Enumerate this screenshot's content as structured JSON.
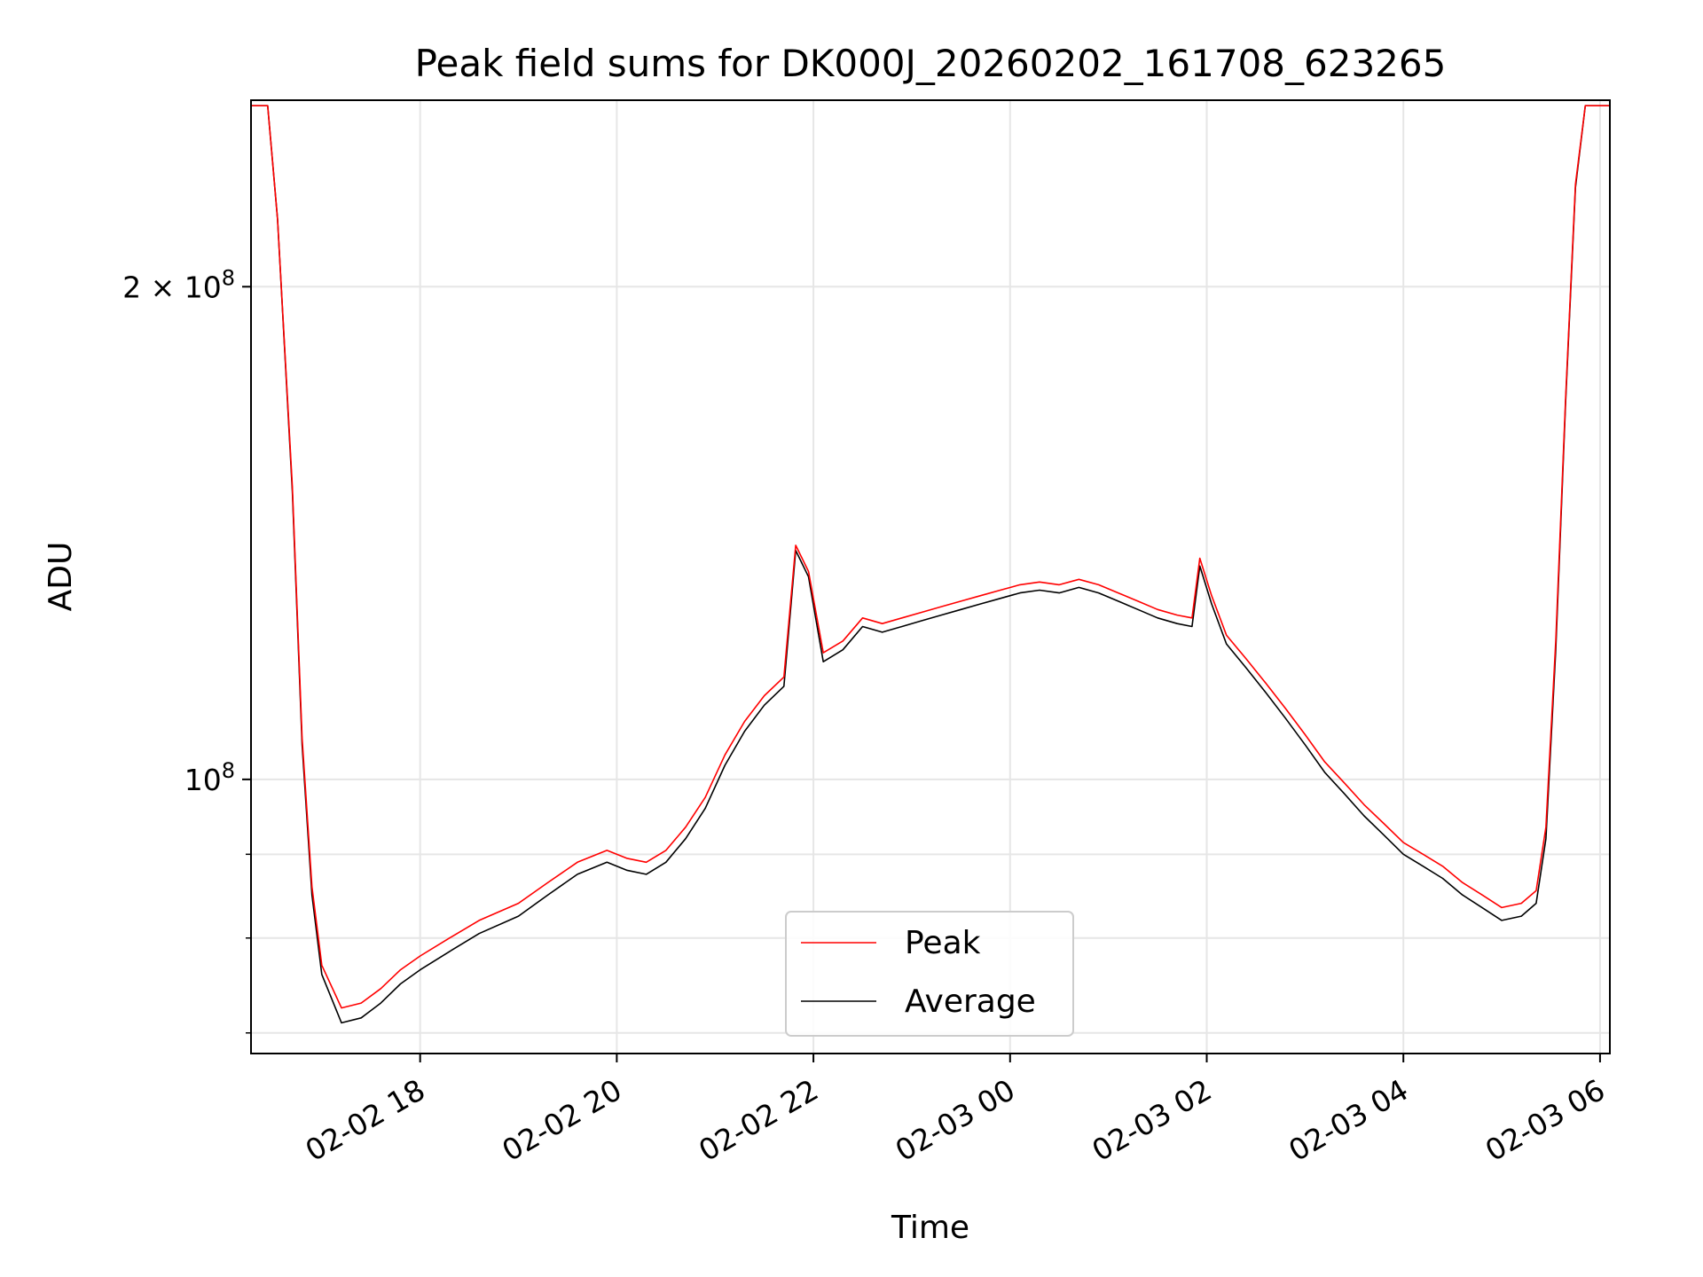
{
  "chart_data": {
    "type": "line",
    "title": "Peak field sums for DK000J_20260202_161708_623265",
    "xlabel": "Time",
    "ylabel": "ADU",
    "yscale": "log",
    "x_unit": "hours since 2026-02-02 00:00 (x values)",
    "xlim": [
      16.28,
      30.1
    ],
    "ylim": [
      68000000,
      260000000
    ],
    "x_ticks": [
      {
        "value": 18,
        "label": "02-02 18"
      },
      {
        "value": 20,
        "label": "02-02 20"
      },
      {
        "value": 22,
        "label": "02-02 22"
      },
      {
        "value": 24,
        "label": "02-03 00"
      },
      {
        "value": 26,
        "label": "02-03 02"
      },
      {
        "value": 28,
        "label": "02-03 04"
      },
      {
        "value": 30,
        "label": "02-03 06"
      }
    ],
    "y_ticks_major": [
      {
        "value": 100000000,
        "base": "10",
        "exp": "8",
        "coef": ""
      },
      {
        "value": 200000000,
        "base": "10",
        "exp": "8",
        "coef": "2 × "
      }
    ],
    "y_ticks_minor": [
      70000000,
      80000000,
      90000000,
      300000000
    ],
    "grid": true,
    "legend": {
      "position": "lower-center",
      "entries": [
        "Peak",
        "Average"
      ]
    },
    "series": [
      {
        "name": "Average",
        "color": "#000000",
        "points": [
          [
            16.28,
            258000000
          ],
          [
            16.45,
            258000000
          ],
          [
            16.55,
            220000000
          ],
          [
            16.7,
            150000000
          ],
          [
            16.8,
            105000000
          ],
          [
            16.9,
            85000000
          ],
          [
            17.0,
            76000000
          ],
          [
            17.2,
            71000000
          ],
          [
            17.4,
            71500000
          ],
          [
            17.6,
            73000000
          ],
          [
            17.8,
            75000000
          ],
          [
            18.0,
            76500000
          ],
          [
            18.3,
            78500000
          ],
          [
            18.6,
            80500000
          ],
          [
            19.0,
            82500000
          ],
          [
            19.3,
            85000000
          ],
          [
            19.6,
            87500000
          ],
          [
            19.9,
            89000000
          ],
          [
            20.1,
            88000000
          ],
          [
            20.3,
            87500000
          ],
          [
            20.5,
            89000000
          ],
          [
            20.7,
            92000000
          ],
          [
            20.9,
            96000000
          ],
          [
            21.1,
            102000000
          ],
          [
            21.3,
            107000000
          ],
          [
            21.5,
            111000000
          ],
          [
            21.7,
            114000000
          ],
          [
            21.82,
            138000000
          ],
          [
            21.95,
            133000000
          ],
          [
            22.1,
            118000000
          ],
          [
            22.3,
            120000000
          ],
          [
            22.5,
            124000000
          ],
          [
            22.7,
            123000000
          ],
          [
            22.9,
            124000000
          ],
          [
            23.1,
            125000000
          ],
          [
            23.3,
            126000000
          ],
          [
            23.5,
            127000000
          ],
          [
            23.7,
            128000000
          ],
          [
            23.9,
            129000000
          ],
          [
            24.1,
            130000000
          ],
          [
            24.3,
            130500000
          ],
          [
            24.5,
            130000000
          ],
          [
            24.7,
            131000000
          ],
          [
            24.9,
            130000000
          ],
          [
            25.1,
            128500000
          ],
          [
            25.3,
            127000000
          ],
          [
            25.5,
            125500000
          ],
          [
            25.7,
            124500000
          ],
          [
            25.85,
            124000000
          ],
          [
            25.93,
            135000000
          ],
          [
            26.05,
            128000000
          ],
          [
            26.2,
            121000000
          ],
          [
            26.4,
            117000000
          ],
          [
            26.6,
            113000000
          ],
          [
            26.8,
            109000000
          ],
          [
            27.0,
            105000000
          ],
          [
            27.2,
            101000000
          ],
          [
            27.4,
            98000000
          ],
          [
            27.6,
            95000000
          ],
          [
            27.8,
            92500000
          ],
          [
            28.0,
            90000000
          ],
          [
            28.2,
            88500000
          ],
          [
            28.4,
            87000000
          ],
          [
            28.6,
            85000000
          ],
          [
            28.8,
            83500000
          ],
          [
            29.0,
            82000000
          ],
          [
            29.2,
            82500000
          ],
          [
            29.35,
            84000000
          ],
          [
            29.45,
            92000000
          ],
          [
            29.55,
            120000000
          ],
          [
            29.65,
            170000000
          ],
          [
            29.75,
            230000000
          ],
          [
            29.85,
            258000000
          ],
          [
            30.1,
            258000000
          ]
        ]
      },
      {
        "name": "Peak",
        "color": "#ff0000",
        "points": [
          [
            16.28,
            258000000
          ],
          [
            16.45,
            258000000
          ],
          [
            16.55,
            220000000
          ],
          [
            16.7,
            151000000
          ],
          [
            16.8,
            106000000
          ],
          [
            16.9,
            86000000
          ],
          [
            17.0,
            77000000
          ],
          [
            17.2,
            72500000
          ],
          [
            17.4,
            73000000
          ],
          [
            17.6,
            74500000
          ],
          [
            17.8,
            76500000
          ],
          [
            18.0,
            78000000
          ],
          [
            18.3,
            80000000
          ],
          [
            18.6,
            82000000
          ],
          [
            19.0,
            84000000
          ],
          [
            19.3,
            86500000
          ],
          [
            19.6,
            89000000
          ],
          [
            19.9,
            90500000
          ],
          [
            20.1,
            89500000
          ],
          [
            20.3,
            89000000
          ],
          [
            20.5,
            90500000
          ],
          [
            20.7,
            93500000
          ],
          [
            20.9,
            97500000
          ],
          [
            21.1,
            103500000
          ],
          [
            21.3,
            108500000
          ],
          [
            21.5,
            112500000
          ],
          [
            21.7,
            115500000
          ],
          [
            21.82,
            139000000
          ],
          [
            21.95,
            134000000
          ],
          [
            22.1,
            119500000
          ],
          [
            22.3,
            121500000
          ],
          [
            22.5,
            125500000
          ],
          [
            22.7,
            124500000
          ],
          [
            22.9,
            125500000
          ],
          [
            23.1,
            126500000
          ],
          [
            23.3,
            127500000
          ],
          [
            23.5,
            128500000
          ],
          [
            23.7,
            129500000
          ],
          [
            23.9,
            130500000
          ],
          [
            24.1,
            131500000
          ],
          [
            24.3,
            132000000
          ],
          [
            24.5,
            131500000
          ],
          [
            24.7,
            132500000
          ],
          [
            24.9,
            131500000
          ],
          [
            25.1,
            130000000
          ],
          [
            25.3,
            128500000
          ],
          [
            25.5,
            127000000
          ],
          [
            25.7,
            126000000
          ],
          [
            25.85,
            125500000
          ],
          [
            25.93,
            136500000
          ],
          [
            26.05,
            129500000
          ],
          [
            26.2,
            122500000
          ],
          [
            26.4,
            118500000
          ],
          [
            26.6,
            114500000
          ],
          [
            26.8,
            110500000
          ],
          [
            27.0,
            106500000
          ],
          [
            27.2,
            102500000
          ],
          [
            27.4,
            99500000
          ],
          [
            27.6,
            96500000
          ],
          [
            27.8,
            94000000
          ],
          [
            28.0,
            91500000
          ],
          [
            28.2,
            90000000
          ],
          [
            28.4,
            88500000
          ],
          [
            28.6,
            86500000
          ],
          [
            28.8,
            85000000
          ],
          [
            29.0,
            83500000
          ],
          [
            29.2,
            84000000
          ],
          [
            29.35,
            85500000
          ],
          [
            29.45,
            93500000
          ],
          [
            29.55,
            121500000
          ],
          [
            29.65,
            171000000
          ],
          [
            29.75,
            231000000
          ],
          [
            29.85,
            258000000
          ],
          [
            30.1,
            258000000
          ]
        ]
      }
    ]
  }
}
